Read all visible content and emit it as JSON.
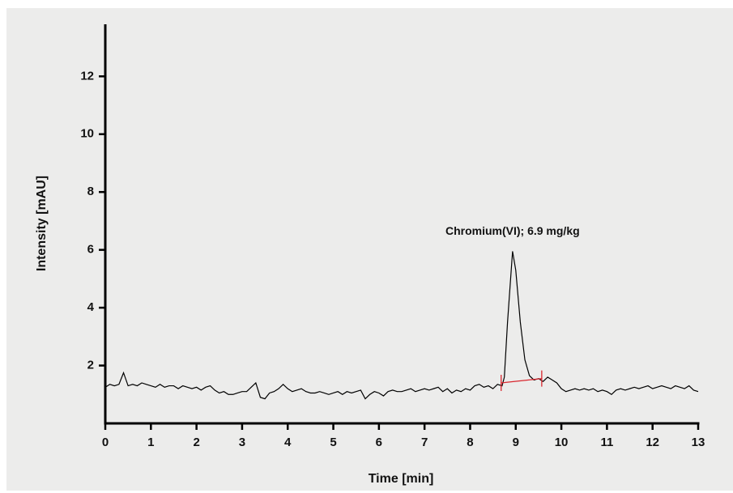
{
  "chart_data": {
    "type": "line",
    "xlabel": "Time [min]",
    "ylabel": "Intensity [mAU]",
    "annotation": "Chromium(VI); 6.9 mg/kg",
    "color": "#000000",
    "x": [
      0,
      0.1,
      0.2,
      0.3,
      0.4,
      0.5,
      0.6,
      0.7,
      0.8,
      0.9,
      1,
      1.1,
      1.2,
      1.3,
      1.4,
      1.5,
      1.6,
      1.7,
      1.8,
      1.9,
      2,
      2.1,
      2.2,
      2.3,
      2.4,
      2.5,
      2.6,
      2.7,
      2.8,
      2.9,
      3,
      3.1,
      3.2,
      3.3,
      3.4,
      3.5,
      3.6,
      3.7,
      3.8,
      3.9,
      4,
      4.1,
      4.2,
      4.3,
      4.4,
      4.5,
      4.6,
      4.7,
      4.8,
      4.9,
      5,
      5.1,
      5.2,
      5.3,
      5.4,
      5.5,
      5.6,
      5.7,
      5.8,
      5.9,
      6,
      6.1,
      6.2,
      6.3,
      6.4,
      6.5,
      6.6,
      6.7,
      6.8,
      6.9,
      7,
      7.1,
      7.2,
      7.3,
      7.4,
      7.5,
      7.6,
      7.7,
      7.8,
      7.9,
      8,
      8.1,
      8.2,
      8.3,
      8.4,
      8.5,
      8.6,
      8.7,
      8.75,
      8.82,
      8.93,
      9.0,
      9.1,
      9.2,
      9.3,
      9.4,
      9.5,
      9.6,
      9.7,
      9.8,
      9.9,
      10,
      10.1,
      10.2,
      10.3,
      10.4,
      10.5,
      10.6,
      10.7,
      10.8,
      10.9,
      11,
      11.1,
      11.2,
      11.3,
      11.4,
      11.5,
      11.6,
      11.7,
      11.8,
      11.9,
      12,
      12.1,
      12.2,
      12.3,
      12.4,
      12.5,
      12.6,
      12.7,
      12.8,
      12.9,
      13
    ],
    "values": [
      1.25,
      1.35,
      1.3,
      1.35,
      1.75,
      1.3,
      1.35,
      1.3,
      1.4,
      1.35,
      1.3,
      1.25,
      1.35,
      1.25,
      1.3,
      1.3,
      1.2,
      1.3,
      1.25,
      1.2,
      1.25,
      1.15,
      1.25,
      1.3,
      1.15,
      1.05,
      1.1,
      1.0,
      1.0,
      1.05,
      1.1,
      1.1,
      1.25,
      1.4,
      0.9,
      0.85,
      1.05,
      1.1,
      1.2,
      1.35,
      1.2,
      1.1,
      1.15,
      1.2,
      1.1,
      1.05,
      1.05,
      1.1,
      1.05,
      1.0,
      1.05,
      1.1,
      1.0,
      1.1,
      1.05,
      1.1,
      1.15,
      0.85,
      1.0,
      1.1,
      1.05,
      0.95,
      1.1,
      1.15,
      1.1,
      1.1,
      1.15,
      1.2,
      1.1,
      1.15,
      1.2,
      1.15,
      1.2,
      1.25,
      1.1,
      1.2,
      1.05,
      1.15,
      1.1,
      1.2,
      1.15,
      1.3,
      1.35,
      1.25,
      1.3,
      1.2,
      1.35,
      1.3,
      1.6,
      3.5,
      5.95,
      5.3,
      3.5,
      2.2,
      1.65,
      1.5,
      1.55,
      1.45,
      1.6,
      1.5,
      1.4,
      1.2,
      1.1,
      1.15,
      1.2,
      1.15,
      1.2,
      1.15,
      1.2,
      1.1,
      1.15,
      1.1,
      1.0,
      1.15,
      1.2,
      1.15,
      1.2,
      1.25,
      1.2,
      1.25,
      1.3,
      1.2,
      1.25,
      1.3,
      1.25,
      1.2,
      1.3,
      1.25,
      1.2,
      1.3,
      1.15,
      1.1
    ],
    "baseline": {
      "x": [
        8.68,
        9.57
      ],
      "values": [
        1.4,
        1.55
      ],
      "color": "#d9262e"
    },
    "xlim": [
      0,
      13
    ],
    "ylim": [
      0,
      13.8
    ],
    "xticks": [
      0,
      1,
      2,
      3,
      4,
      5,
      6,
      7,
      8,
      9,
      10,
      11,
      12,
      13
    ],
    "yticks": [
      2,
      4,
      6,
      8,
      10,
      12
    ]
  }
}
